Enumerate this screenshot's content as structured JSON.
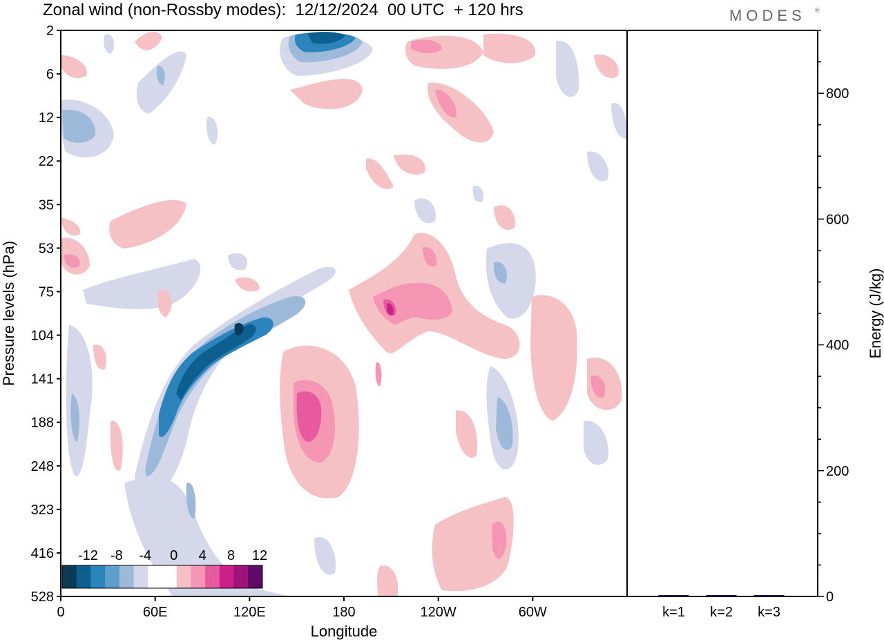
{
  "title": "Zonal wind (non-Rossby modes):  12/12/2024  00 UTC  + 120 hrs",
  "brand": "MODES",
  "brand_mark": "®",
  "chart_data": [
    {
      "type": "heatmap",
      "title": "Zonal wind (non-Rossby modes):  12/12/2024  00 UTC  + 120 hrs",
      "xlabel": "Longitude",
      "ylabel": "Pressure levels (hPa)",
      "x_ticks": [
        "0",
        "60E",
        "120E",
        "180",
        "120W",
        "60W"
      ],
      "x_tick_degrees": [
        0,
        60,
        120,
        180,
        240,
        300
      ],
      "xlim": [
        0,
        360
      ],
      "y_ticks": [
        "2",
        "6",
        "12",
        "22",
        "35",
        "53",
        "75",
        "104",
        "141",
        "188",
        "248",
        "323",
        "416",
        "528"
      ],
      "colorbar": {
        "labels": [
          "-12",
          "-8",
          "-4",
          "0",
          "4",
          "8",
          "12"
        ],
        "colors": [
          "#0a3a55",
          "#0c5f8f",
          "#2b84bc",
          "#5f9fcc",
          "#9db9da",
          "#d4d8ea",
          "#ffffff",
          "#ffffff",
          "#f6c1c4",
          "#f496b4",
          "#e85a9f",
          "#c9208a",
          "#a0127a",
          "#5f0a6a"
        ]
      },
      "features": [
        {
          "sign": "negative",
          "lon_range": [
            50,
            170
          ],
          "level_range": [
            "75",
            "248"
          ],
          "min": -12
        },
        {
          "sign": "negative",
          "lon_range": [
            150,
            190
          ],
          "level_range": [
            "2",
            "6"
          ],
          "min": -10
        },
        {
          "sign": "positive",
          "lon_range": [
            145,
            185
          ],
          "level_range": [
            "104",
            "323"
          ],
          "max": 9
        },
        {
          "sign": "positive",
          "lon_range": [
            190,
            250
          ],
          "level_range": [
            "53",
            "141"
          ],
          "max": 9
        },
        {
          "sign": "positive",
          "lon_range": [
            235,
            285
          ],
          "level_range": [
            "323",
            "528"
          ],
          "max": 7
        },
        {
          "sign": "negative",
          "lon_range": [
            280,
            295
          ],
          "level_range": [
            "141",
            "248"
          ],
          "min": -7
        }
      ]
    },
    {
      "type": "bar",
      "ylabel": "Energy (J/kg)",
      "categories": [
        "k=1",
        "k=2",
        "k=3"
      ],
      "values": [
        2,
        1,
        1
      ],
      "ylim": [
        0,
        900
      ],
      "y_ticks": [
        "0",
        "200",
        "400",
        "600",
        "800"
      ]
    }
  ]
}
